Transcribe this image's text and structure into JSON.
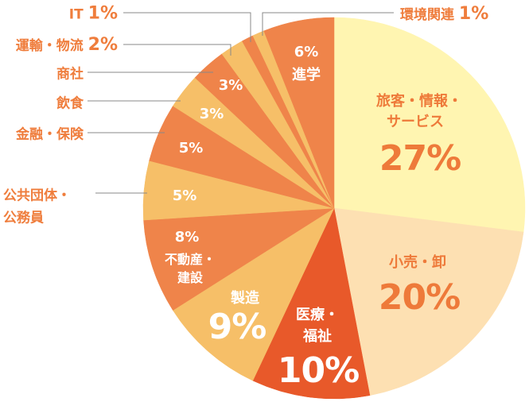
{
  "chart_data": {
    "type": "pie",
    "start": "top",
    "direction": "clockwise",
    "slices": [
      {
        "label": "旅客・情報・サービス",
        "label_lines": [
          "旅客・情報・",
          "サービス"
        ],
        "value": 27,
        "text": "27%",
        "color": "#fff5b1"
      },
      {
        "label": "小売・卸",
        "label_lines": [
          "小売・卸"
        ],
        "value": 20,
        "text": "20%",
        "color": "#fde0b2"
      },
      {
        "label": "医療・福祉",
        "label_lines": [
          "医療・",
          "福祉"
        ],
        "value": 10,
        "text": "10%",
        "color": "#e8592a"
      },
      {
        "label": "製造",
        "label_lines": [
          "製造"
        ],
        "value": 9,
        "text": "9%",
        "color": "#f6bf68"
      },
      {
        "label": "不動産・建設",
        "label_lines": [
          "不動産・",
          "建設"
        ],
        "value": 8,
        "text": "8%",
        "color": "#ef844a"
      },
      {
        "label": "公共団体・公務員",
        "label_lines": [
          "公共団体・",
          "公務員"
        ],
        "value": 5,
        "text": "5%",
        "color": "#f6bf68"
      },
      {
        "label": "金融・保険",
        "label_lines": [
          "金融・保険"
        ],
        "value": 5,
        "text": "5%",
        "color": "#ef844a"
      },
      {
        "label": "飲食",
        "label_lines": [
          "飲食"
        ],
        "value": 3,
        "text": "3%",
        "color": "#f6bf68"
      },
      {
        "label": "商社",
        "label_lines": [
          "商社"
        ],
        "value": 3,
        "text": "3%",
        "color": "#ef844a"
      },
      {
        "label": "運輸・物流",
        "label_lines": [
          "運輸・物流"
        ],
        "value": 2,
        "text": "2%",
        "color": "#f6bf68"
      },
      {
        "label": "IT",
        "label_lines": [
          "IT"
        ],
        "value": 1,
        "text": "1%",
        "color": "#ef844a"
      },
      {
        "label": "環境関連",
        "label_lines": [
          "環境関連"
        ],
        "value": 1,
        "text": "1%",
        "color": "#f6bf68"
      },
      {
        "label": "進学",
        "label_lines": [
          "進学"
        ],
        "value": 6,
        "text": "6%",
        "color": "#ef844a"
      }
    ],
    "label_color": "#ef7d3c",
    "leader_line_color": "#888888"
  }
}
